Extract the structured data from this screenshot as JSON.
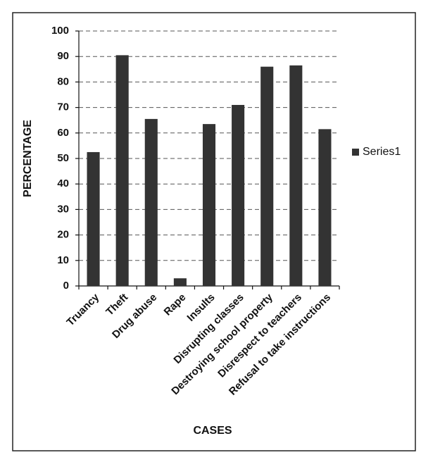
{
  "chart_data": {
    "type": "bar",
    "xlabel": "CASES",
    "ylabel": "PERCENTAGE",
    "categories": [
      "Truancy",
      "Theft",
      "Drug abuse",
      "Rape",
      "Insults",
      "Disrupting classes",
      "Destroying school property",
      "Disrespect to teachers",
      "Refusal to take instructions"
    ],
    "series": [
      {
        "name": "Series1",
        "color": "#333333",
        "values": [
          52.5,
          90.5,
          65.5,
          3,
          63.5,
          71,
          86,
          86.5,
          61.5
        ]
      }
    ],
    "ylim": [
      0,
      100
    ],
    "yticks": [
      0,
      10,
      20,
      30,
      40,
      50,
      60,
      70,
      80,
      90,
      100
    ],
    "grid": true,
    "legend": "right"
  }
}
